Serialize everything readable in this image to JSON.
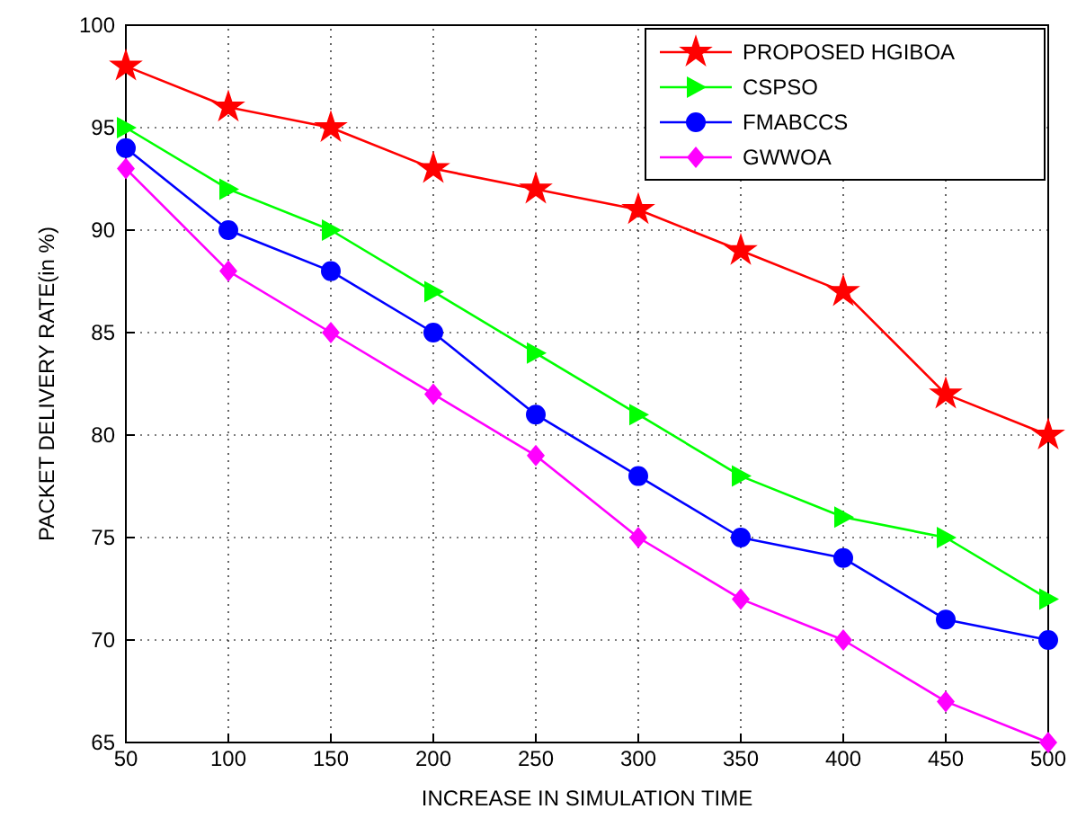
{
  "chart_data": {
    "type": "line",
    "xlabel": "INCREASE IN SIMULATION TIME",
    "ylabel": "PACKET DELIVERY RATE(in %)",
    "x": [
      50,
      100,
      150,
      200,
      250,
      300,
      350,
      400,
      450,
      500
    ],
    "xlim": [
      50,
      500
    ],
    "xticks": [
      50,
      100,
      150,
      200,
      250,
      300,
      350,
      400,
      450,
      500
    ],
    "ylim": [
      65,
      100
    ],
    "yticks": [
      65,
      70,
      75,
      80,
      85,
      90,
      95,
      100
    ],
    "grid": true,
    "legend": "top right",
    "line_style": "solid",
    "series": [
      {
        "name": "PROPOSED HGIBOA",
        "color": "#ff0000",
        "marker": "star",
        "values": [
          98,
          96,
          95,
          93,
          92,
          91,
          89,
          87,
          82,
          80
        ]
      },
      {
        "name": "CSPSO",
        "color": "#00ff00",
        "marker": "triangle",
        "values": [
          95,
          92,
          90,
          87,
          84,
          81,
          78,
          76,
          75,
          72
        ]
      },
      {
        "name": "FMABCCS",
        "color": "#0000ff",
        "marker": "circle",
        "values": [
          94,
          90,
          88,
          85,
          81,
          78,
          75,
          74,
          71,
          70
        ]
      },
      {
        "name": "GWWOA",
        "color": "#ff00ff",
        "marker": "diamond",
        "values": [
          93,
          88,
          85,
          82,
          79,
          75,
          72,
          70,
          67,
          65
        ]
      }
    ]
  }
}
